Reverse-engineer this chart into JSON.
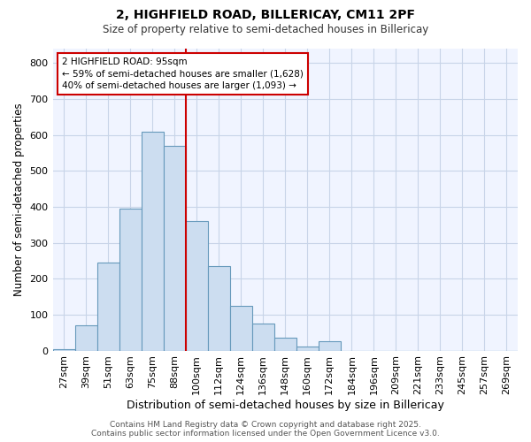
{
  "title_line1": "2, HIGHFIELD ROAD, BILLERICAY, CM11 2PF",
  "title_line2": "Size of property relative to semi-detached houses in Billericay",
  "xlabel": "Distribution of semi-detached houses by size in Billericay",
  "ylabel": "Number of semi-detached properties",
  "bar_color": "#ccddf0",
  "bar_edge_color": "#6699bb",
  "bin_labels": [
    "27sqm",
    "39sqm",
    "51sqm",
    "63sqm",
    "75sqm",
    "88sqm",
    "100sqm",
    "112sqm",
    "124sqm",
    "136sqm",
    "148sqm",
    "160sqm",
    "172sqm",
    "184sqm",
    "196sqm",
    "209sqm",
    "221sqm",
    "233sqm",
    "245sqm",
    "257sqm",
    "269sqm"
  ],
  "bar_heights": [
    5,
    70,
    245,
    395,
    610,
    570,
    360,
    235,
    125,
    75,
    35,
    12,
    25,
    0,
    0,
    0,
    0,
    0,
    0,
    0,
    0
  ],
  "vline_color": "#cc0000",
  "vline_index": 6,
  "ylim": [
    0,
    840
  ],
  "yticks": [
    0,
    100,
    200,
    300,
    400,
    500,
    600,
    700,
    800
  ],
  "annotation_title": "2 HIGHFIELD ROAD: 95sqm",
  "annotation_line1": "← 59% of semi-detached houses are smaller (1,628)",
  "annotation_line2": "40% of semi-detached houses are larger (1,093) →",
  "annotation_box_color": "#ffffff",
  "annotation_box_edge": "#cc0000",
  "footer_line1": "Contains HM Land Registry data © Crown copyright and database right 2025.",
  "footer_line2": "Contains public sector information licensed under the Open Government Licence v3.0.",
  "background_color": "#ffffff",
  "plot_bg_color": "#f0f4ff",
  "grid_color": "#c8d4e8"
}
